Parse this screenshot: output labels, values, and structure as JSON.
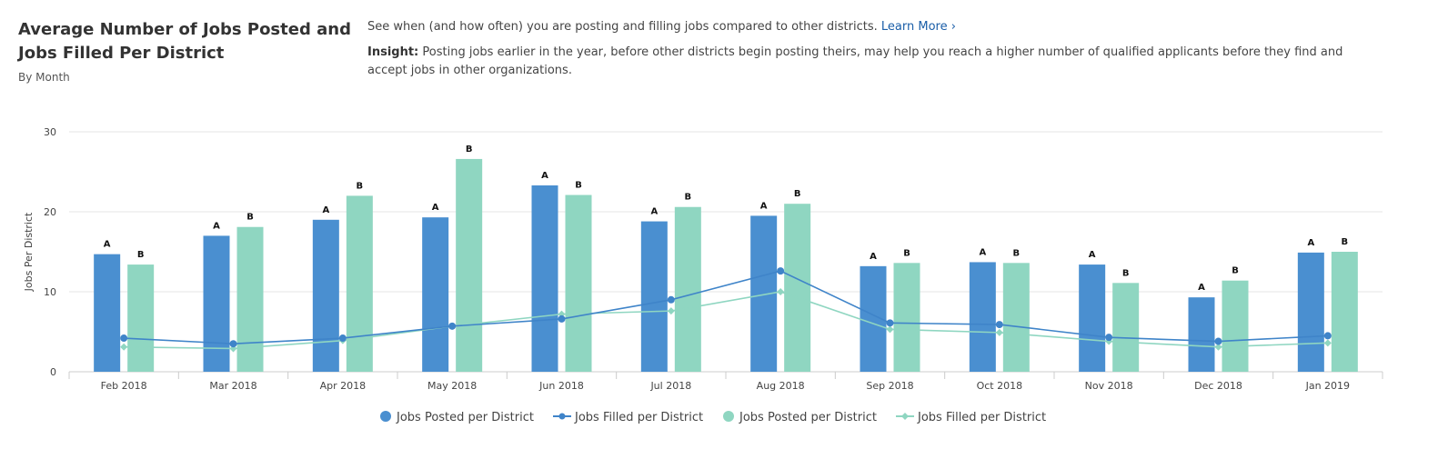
{
  "header": {
    "title": "Average Number of Jobs Posted and Jobs Filled Per District",
    "subtitle": "By Month",
    "description": "See when (and how often) you are posting and filling jobs compared to other districts.",
    "learn_more": "Learn More ›",
    "insight_label": "Insight:",
    "insight_text": "Posting jobs earlier in the year, before other districts begin posting theirs, may help you reach a higher number of qualified applicants before they find and accept jobs in other organizations."
  },
  "colors": {
    "posted_a": "#4a8fd0",
    "posted_b": "#8fd6c1",
    "filled_a": "#3f84c9",
    "filled_b": "#8fd6c1",
    "grid": "#e6e6e6",
    "axis": "#cccccc"
  },
  "chart_data": {
    "type": "bar",
    "categories": [
      "Feb 2018",
      "Mar 2018",
      "Apr 2018",
      "May 2018",
      "Jun 2018",
      "Jul 2018",
      "Aug 2018",
      "Sep 2018",
      "Oct 2018",
      "Nov 2018",
      "Dec 2018",
      "Jan 2019"
    ],
    "ylabel": "Jobs Per District",
    "xlabel": "",
    "ylim": [
      0,
      30
    ],
    "yticks": [
      0,
      10,
      20,
      30
    ],
    "grid": true,
    "legend_position": "bottom",
    "series": [
      {
        "name": "Jobs Posted per District",
        "kind": "bar",
        "group_label": "A",
        "values": [
          14.7,
          17.0,
          19.0,
          19.3,
          23.3,
          18.8,
          19.5,
          13.2,
          13.7,
          13.4,
          9.3,
          14.9
        ]
      },
      {
        "name": "Jobs Filled per District",
        "kind": "line",
        "group": "A",
        "values": [
          4.2,
          3.5,
          4.2,
          5.7,
          6.6,
          9.0,
          12.6,
          6.1,
          5.9,
          4.3,
          3.8,
          4.5
        ]
      },
      {
        "name": "Jobs Posted per District",
        "kind": "bar",
        "group_label": "B",
        "values": [
          13.4,
          18.1,
          22.0,
          26.6,
          22.1,
          20.6,
          21.0,
          13.6,
          13.6,
          11.1,
          11.4,
          15.0
        ]
      },
      {
        "name": "Jobs Filled per District",
        "kind": "line",
        "group": "B",
        "values": [
          3.1,
          2.9,
          3.9,
          5.7,
          7.2,
          7.6,
          10.0,
          5.3,
          4.9,
          3.8,
          3.1,
          3.6
        ]
      }
    ]
  }
}
